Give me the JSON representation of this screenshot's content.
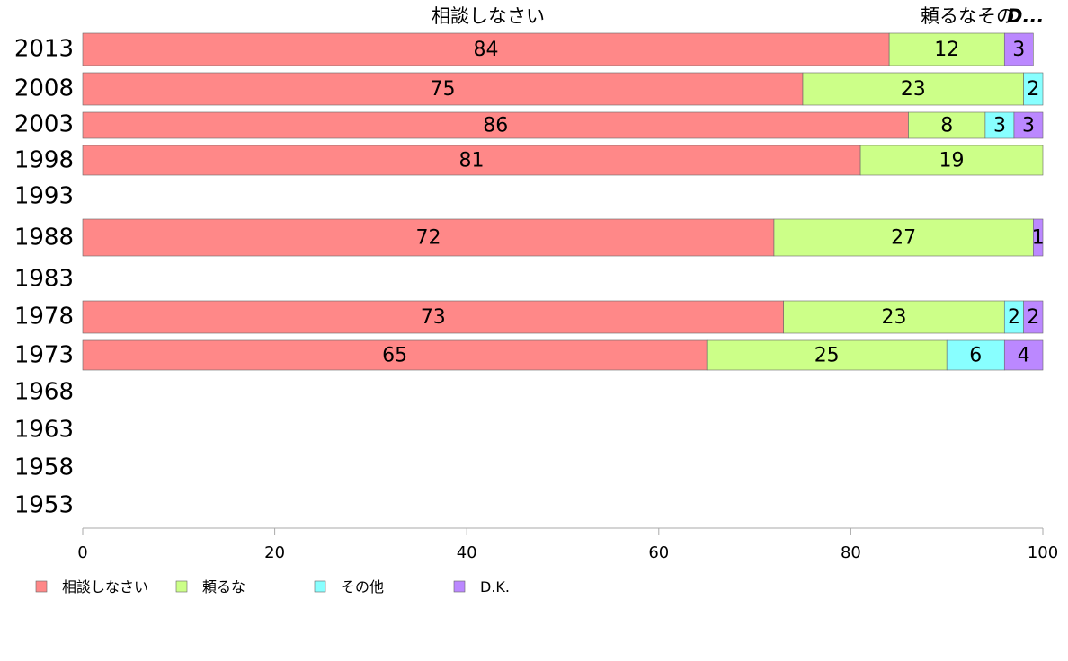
{
  "chart_data": {
    "type": "bar",
    "orientation": "horizontal",
    "stacked": true,
    "categories": [
      "2013",
      "2008",
      "2003",
      "1998",
      "1993",
      "1988",
      "1983",
      "1978",
      "1973",
      "1968",
      "1963",
      "1958",
      "1953"
    ],
    "series": [
      {
        "name": "相談しなさい",
        "color": "#ff8888",
        "values": [
          84,
          75,
          86,
          81,
          null,
          72,
          null,
          73,
          65,
          null,
          null,
          null,
          null
        ]
      },
      {
        "name": "頼るな",
        "color": "#ccff88",
        "values": [
          12,
          23,
          8,
          19,
          null,
          27,
          null,
          23,
          25,
          null,
          null,
          null,
          null
        ]
      },
      {
        "name": "その他",
        "color": "#88ffff",
        "values": [
          0,
          2,
          3,
          0,
          null,
          0,
          null,
          2,
          6,
          null,
          null,
          null,
          null
        ]
      },
      {
        "name": "D.K.",
        "color": "#bb88ff",
        "values": [
          3,
          0,
          3,
          0,
          null,
          1,
          null,
          2,
          4,
          null,
          null,
          null,
          null
        ]
      }
    ],
    "x_ticks": [
      "0",
      "20",
      "40",
      "60",
      "80",
      "100"
    ],
    "xlim": [
      0,
      100
    ],
    "top_labels": [
      "相談しなさい",
      "頼るなその",
      "D..."
    ],
    "legend_position": "bottom-left",
    "grid": false
  }
}
